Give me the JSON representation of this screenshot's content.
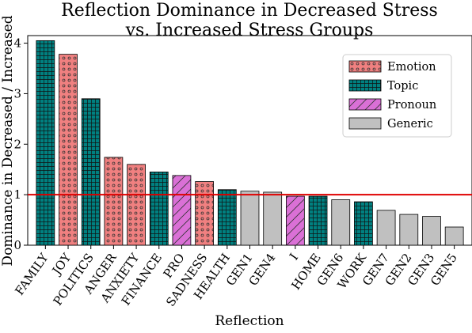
{
  "chart_data": {
    "type": "bar",
    "title": "Reflection Dominance in Decreased Stress\nvs. Increased Stress Groups",
    "xlabel": "Reflection",
    "ylabel": "Dominance in Decreased / Increased",
    "ylim": [
      0,
      4.15
    ],
    "yticks": [
      0,
      1,
      2,
      3,
      4
    ],
    "grid": false,
    "reference_line": {
      "y": 1.0,
      "color": "#e00000"
    },
    "legend": {
      "placement": "top-right",
      "entries": [
        {
          "name": "Emotion",
          "color": "#f08080",
          "pattern": "dots"
        },
        {
          "name": "Topic",
          "color": "#008080",
          "pattern": "grid"
        },
        {
          "name": "Pronoun",
          "color": "#da70d6",
          "pattern": "hatch"
        },
        {
          "name": "Generic",
          "color": "#c0c0c0",
          "pattern": "none"
        }
      ]
    },
    "bars": [
      {
        "category": "FAMILY",
        "value": 4.05,
        "group": "Topic"
      },
      {
        "category": "JOY",
        "value": 3.78,
        "group": "Emotion"
      },
      {
        "category": "POLITICS",
        "value": 2.9,
        "group": "Topic"
      },
      {
        "category": "ANGER",
        "value": 1.74,
        "group": "Emotion"
      },
      {
        "category": "ANXIETY",
        "value": 1.6,
        "group": "Emotion"
      },
      {
        "category": "FINANCE",
        "value": 1.45,
        "group": "Topic"
      },
      {
        "category": "PRO",
        "value": 1.38,
        "group": "Pronoun"
      },
      {
        "category": "SADNESS",
        "value": 1.26,
        "group": "Emotion"
      },
      {
        "category": "HEALTH",
        "value": 1.1,
        "group": "Topic"
      },
      {
        "category": "GEN1",
        "value": 1.07,
        "group": "Generic"
      },
      {
        "category": "GEN4",
        "value": 1.05,
        "group": "Generic"
      },
      {
        "category": "I",
        "value": 0.97,
        "group": "Pronoun"
      },
      {
        "category": "HOME",
        "value": 0.97,
        "group": "Topic"
      },
      {
        "category": "GEN6",
        "value": 0.9,
        "group": "Generic"
      },
      {
        "category": "WORK",
        "value": 0.86,
        "group": "Topic"
      },
      {
        "category": "GEN7",
        "value": 0.69,
        "group": "Generic"
      },
      {
        "category": "GEN2",
        "value": 0.61,
        "group": "Generic"
      },
      {
        "category": "GEN3",
        "value": 0.57,
        "group": "Generic"
      },
      {
        "category": "GEN5",
        "value": 0.36,
        "group": "Generic"
      }
    ]
  }
}
